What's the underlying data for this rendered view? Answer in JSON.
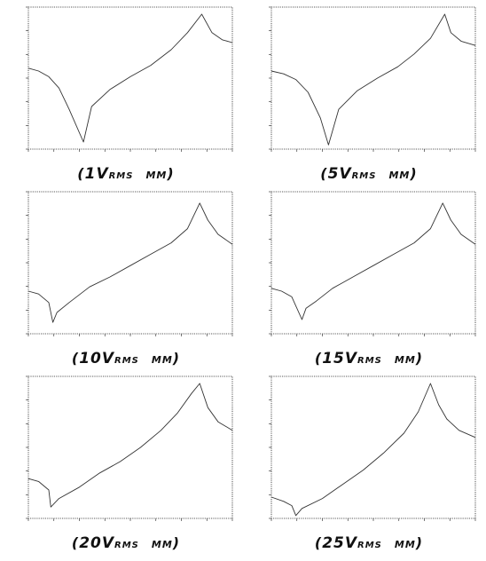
{
  "chart_data": [
    {
      "type": "line",
      "caption": {
        "open": "(",
        "voltage": "1V",
        "sub": "RMS",
        "unit": "MM",
        "close": ")"
      },
      "x": [
        0,
        0.05,
        0.1,
        0.15,
        0.2,
        0.27,
        0.31,
        0.4,
        0.5,
        0.6,
        0.7,
        0.78,
        0.85,
        0.9,
        0.95,
        1.0
      ],
      "y": [
        0.57,
        0.55,
        0.51,
        0.43,
        0.28,
        0.05,
        0.3,
        0.42,
        0.51,
        0.59,
        0.7,
        0.82,
        0.95,
        0.82,
        0.77,
        0.75
      ]
    },
    {
      "type": "line",
      "caption": {
        "open": "(",
        "voltage": "5V",
        "sub": "RMS",
        "unit": "MM",
        "close": ")"
      },
      "x": [
        0,
        0.06,
        0.12,
        0.18,
        0.24,
        0.28,
        0.33,
        0.42,
        0.52,
        0.62,
        0.7,
        0.78,
        0.85,
        0.88,
        0.93,
        1.0
      ],
      "y": [
        0.55,
        0.53,
        0.49,
        0.4,
        0.22,
        0.03,
        0.28,
        0.41,
        0.5,
        0.58,
        0.67,
        0.78,
        0.95,
        0.82,
        0.76,
        0.73
      ]
    },
    {
      "type": "line",
      "caption": {
        "open": "(",
        "voltage": "10V",
        "sub": "RMS",
        "unit": "MM",
        "close": ")"
      },
      "x": [
        0,
        0.05,
        0.1,
        0.12,
        0.14,
        0.2,
        0.3,
        0.4,
        0.5,
        0.6,
        0.7,
        0.78,
        0.84,
        0.88,
        0.93,
        1.0
      ],
      "y": [
        0.3,
        0.28,
        0.22,
        0.08,
        0.15,
        0.22,
        0.33,
        0.4,
        0.48,
        0.56,
        0.64,
        0.74,
        0.92,
        0.8,
        0.7,
        0.63
      ]
    },
    {
      "type": "line",
      "caption": {
        "open": "(",
        "voltage": "15V",
        "sub": "RMS",
        "unit": "MM",
        "close": ")"
      },
      "x": [
        0,
        0.05,
        0.1,
        0.15,
        0.17,
        0.22,
        0.3,
        0.4,
        0.5,
        0.6,
        0.7,
        0.78,
        0.84,
        0.88,
        0.93,
        1.0
      ],
      "y": [
        0.32,
        0.3,
        0.26,
        0.1,
        0.18,
        0.23,
        0.32,
        0.4,
        0.48,
        0.56,
        0.64,
        0.74,
        0.92,
        0.8,
        0.7,
        0.63
      ]
    },
    {
      "type": "line",
      "caption": {
        "open": "(",
        "voltage": "20V",
        "sub": "RMS",
        "unit": "MM",
        "close": ")"
      },
      "x": [
        0,
        0.05,
        0.1,
        0.11,
        0.15,
        0.25,
        0.35,
        0.45,
        0.55,
        0.65,
        0.73,
        0.8,
        0.84,
        0.88,
        0.93,
        1.0
      ],
      "y": [
        0.28,
        0.26,
        0.2,
        0.08,
        0.14,
        0.22,
        0.32,
        0.4,
        0.5,
        0.62,
        0.74,
        0.88,
        0.95,
        0.78,
        0.68,
        0.62
      ]
    },
    {
      "type": "line",
      "caption": {
        "open": "(",
        "voltage": "25V",
        "sub": "RMS",
        "unit": "MM",
        "close": ")"
      },
      "x": [
        0,
        0.06,
        0.1,
        0.12,
        0.15,
        0.25,
        0.35,
        0.45,
        0.55,
        0.65,
        0.72,
        0.78,
        0.82,
        0.86,
        0.92,
        1.0
      ],
      "y": [
        0.15,
        0.12,
        0.09,
        0.02,
        0.07,
        0.14,
        0.24,
        0.34,
        0.46,
        0.6,
        0.75,
        0.95,
        0.8,
        0.7,
        0.62,
        0.57
      ]
    }
  ]
}
